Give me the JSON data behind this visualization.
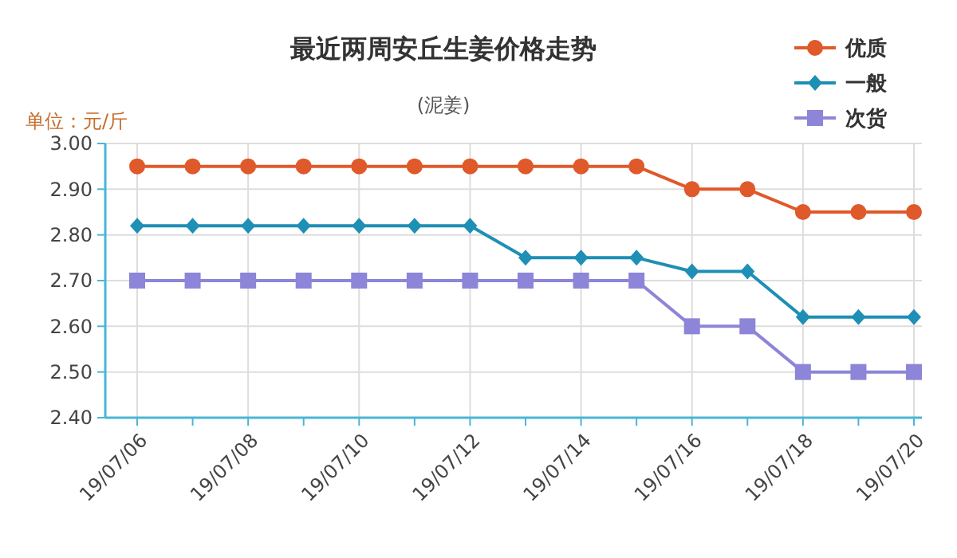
{
  "chart_data": {
    "type": "line",
    "title": "最近两周安丘生姜价格走势",
    "subtitle": "(泥姜)",
    "ylabel": "单位：元/斤",
    "categories": [
      "19/07/06",
      null,
      "19/07/08",
      null,
      "19/07/10",
      null,
      "19/07/12",
      null,
      "19/07/14",
      null,
      "19/07/16",
      null,
      "19/07/18",
      null,
      "19/07/20"
    ],
    "series": [
      {
        "name": "优质",
        "color": "#e0592a",
        "marker": "circle",
        "values": [
          2.95,
          2.95,
          2.95,
          2.95,
          2.95,
          2.95,
          2.95,
          2.95,
          2.95,
          2.95,
          2.9,
          2.9,
          2.85,
          2.85,
          2.85
        ]
      },
      {
        "name": "一般",
        "color": "#1e8fb5",
        "marker": "diamond",
        "values": [
          2.82,
          2.82,
          2.82,
          2.82,
          2.82,
          2.82,
          2.82,
          2.75,
          2.75,
          2.75,
          2.72,
          2.72,
          2.62,
          2.62,
          2.62
        ]
      },
      {
        "name": "次货",
        "color": "#8c85d8",
        "marker": "square",
        "values": [
          2.7,
          2.7,
          2.7,
          2.7,
          2.7,
          2.7,
          2.7,
          2.7,
          2.7,
          2.7,
          2.6,
          2.6,
          2.5,
          2.5,
          2.5
        ]
      }
    ],
    "ylim": [
      2.4,
      3.0
    ],
    "yticks": [
      {
        "value": 2.4,
        "label": "2.40"
      },
      {
        "value": 2.5,
        "label": "2.50"
      },
      {
        "value": 2.6,
        "label": "2.60"
      },
      {
        "value": 2.7,
        "label": "2.70"
      },
      {
        "value": 2.8,
        "label": "2.80"
      },
      {
        "value": 2.9,
        "label": "2.90"
      },
      {
        "value": 3.0,
        "label": "3.00"
      }
    ],
    "grid": true,
    "legend": "top right",
    "line_style": "solid"
  }
}
